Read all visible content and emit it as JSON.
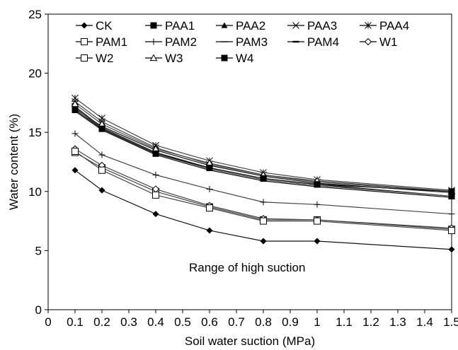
{
  "chart_data": {
    "type": "line",
    "xlabel": "Soil water suction (MPa)",
    "ylabel": "Water content (%)",
    "xlim": [
      0,
      1.5
    ],
    "ylim": [
      0,
      25
    ],
    "xticks": [
      "0",
      "0.1",
      "0.2",
      "0.3",
      "0.4",
      "0.5",
      "0.6",
      "0.7",
      "0.8",
      "0.9",
      "1",
      "1.1",
      "1.2",
      "1.3",
      "1.4",
      "1.5"
    ],
    "yticks": [
      "0",
      "5",
      "10",
      "15",
      "20",
      "25"
    ],
    "grid": false,
    "legend_position": "top",
    "annotation": "Range of high suction",
    "x": [
      0.1,
      0.2,
      0.4,
      0.6,
      0.8,
      1.0,
      1.5
    ],
    "series": [
      {
        "name": "CK",
        "marker": "diamond",
        "values": [
          11.8,
          10.1,
          8.1,
          6.7,
          5.8,
          5.8,
          5.1
        ]
      },
      {
        "name": "PAA1",
        "marker": "square",
        "values": [
          17.2,
          15.4,
          13.3,
          12.0,
          11.1,
          10.6,
          9.6
        ]
      },
      {
        "name": "PAA2",
        "marker": "triangle",
        "values": [
          17.0,
          15.5,
          13.5,
          12.2,
          11.3,
          10.7,
          9.9
        ]
      },
      {
        "name": "PAA3",
        "marker": "x-bar",
        "values": [
          17.6,
          15.9,
          13.7,
          12.3,
          11.4,
          10.8,
          10.0
        ]
      },
      {
        "name": "PAA4",
        "marker": "star",
        "values": [
          17.9,
          16.2,
          13.9,
          12.6,
          11.6,
          11.0,
          10.1
        ]
      },
      {
        "name": "PAM1",
        "marker": "square-open",
        "values": [
          13.3,
          12.0,
          10.0,
          8.7,
          7.6,
          7.6,
          6.8
        ]
      },
      {
        "name": "PAM2",
        "marker": "plus",
        "values": [
          14.9,
          13.1,
          11.4,
          10.2,
          9.1,
          8.9,
          8.1
        ]
      },
      {
        "name": "PAM3",
        "marker": "dash",
        "values": [
          17.1,
          15.3,
          13.2,
          11.9,
          11.0,
          10.5,
          9.6
        ]
      },
      {
        "name": "PAM4",
        "marker": "dash-bold",
        "values": [
          16.8,
          15.2,
          13.1,
          11.8,
          10.9,
          10.4,
          9.5
        ]
      },
      {
        "name": "W1",
        "marker": "diamond-open",
        "values": [
          13.6,
          12.2,
          10.2,
          8.8,
          7.7,
          7.6,
          6.9
        ]
      },
      {
        "name": "W2",
        "marker": "square-open",
        "values": [
          13.4,
          11.8,
          9.7,
          8.6,
          7.5,
          7.5,
          6.7
        ]
      },
      {
        "name": "W3",
        "marker": "triangle-open",
        "values": [
          17.4,
          15.7,
          13.6,
          12.4,
          11.4,
          10.9,
          10.0
        ]
      },
      {
        "name": "W4",
        "marker": "square",
        "values": [
          16.9,
          15.3,
          13.2,
          12.0,
          11.1,
          10.6,
          10.0
        ]
      }
    ]
  }
}
